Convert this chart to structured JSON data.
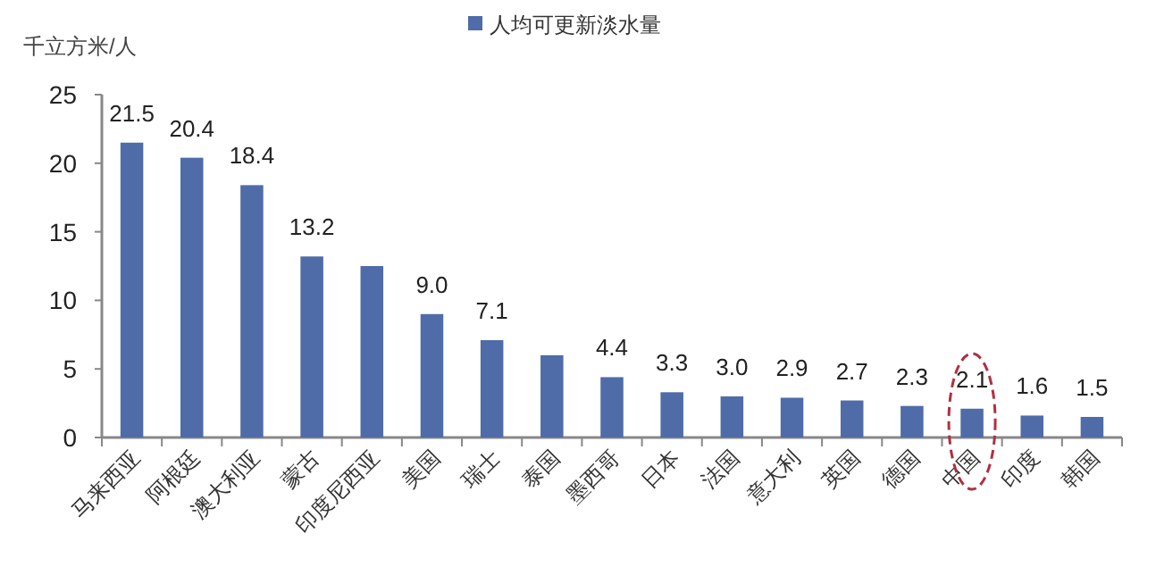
{
  "chart_data": {
    "type": "bar",
    "ylabel": "千立方米/人",
    "categories": [
      "马来西亚",
      "阿根廷",
      "澳大利亚",
      "蒙古",
      "印度尼西亚",
      "美国",
      "瑞士",
      "泰国",
      "墨西哥",
      "日本",
      "法国",
      "意大利",
      "英国",
      "德国",
      "中国",
      "印度",
      "韩国"
    ],
    "series": [
      {
        "name": "人均可更新淡水量",
        "color": "#4f6ca8",
        "values": [
          21.5,
          20.4,
          18.4,
          13.2,
          12.5,
          9.0,
          7.1,
          6.0,
          4.4,
          3.3,
          3.0,
          2.9,
          2.7,
          2.3,
          2.1,
          1.6,
          1.5
        ],
        "value_labels": [
          "21.5",
          "20.4",
          "18.4",
          "13.2",
          null,
          "9.0",
          "7.1",
          null,
          "4.4",
          "3.3",
          "3.0",
          "2.9",
          "2.7",
          "2.3",
          "2.1",
          "1.6",
          "1.5"
        ]
      }
    ],
    "ylim": [
      0,
      25
    ],
    "yticks": [
      0,
      5,
      10,
      15,
      20,
      25
    ],
    "legend": "top",
    "grid": false
  }
}
